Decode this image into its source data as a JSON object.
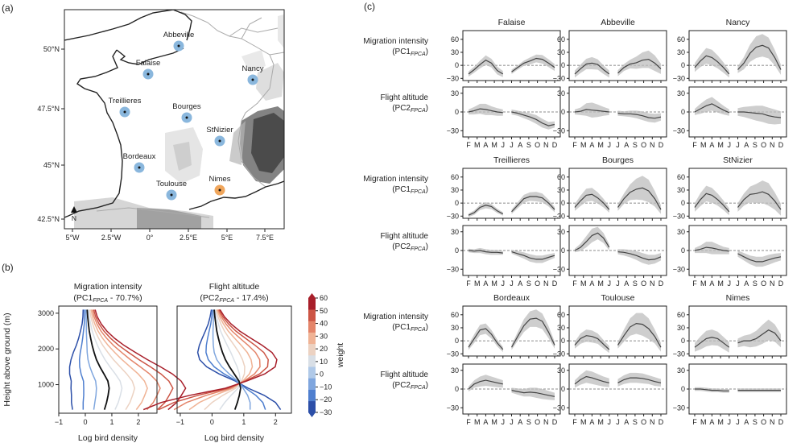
{
  "panel_labels": {
    "a": "(a)",
    "b": "(b)",
    "c": "(c)"
  },
  "map": {
    "lat_ticks": [
      "50°N",
      "47.5°N",
      "45°N",
      "42.5°N"
    ],
    "lon_ticks": [
      "5°W",
      "2.5°W",
      "0°",
      "2.5°E",
      "5°E",
      "7.5°E"
    ],
    "north_label": "N",
    "colors": {
      "site": "#8ab7dd",
      "site_highlight": "#f0a65c",
      "land_line": "#222222",
      "border": "#aaaaaa"
    },
    "sites": [
      {
        "name": "Abbeville",
        "highlight": false
      },
      {
        "name": "Falaise",
        "highlight": false
      },
      {
        "name": "Nancy",
        "highlight": false
      },
      {
        "name": "Treillieres",
        "highlight": false
      },
      {
        "name": "Bourges",
        "highlight": false
      },
      {
        "name": "StNizier",
        "highlight": false
      },
      {
        "name": "Bordeaux",
        "highlight": false
      },
      {
        "name": "Nimes",
        "highlight": true
      },
      {
        "name": "Toulouse",
        "highlight": false
      }
    ]
  },
  "chart_data": [
    {
      "type": "line",
      "panel": "b-left",
      "title": "Migration intensity",
      "subtitle_pre": "(PC1",
      "subtitle_sub": "FPCA",
      "subtitle_post": " - 70.7%)",
      "xlabel": "Log bird density",
      "ylabel": "Height above ground (m)",
      "xlim": [
        -1,
        2.7
      ],
      "ylim": [
        200,
        3200
      ],
      "xticks": [
        -1,
        0,
        1,
        2
      ],
      "yticks": [
        1000,
        2000,
        3000
      ],
      "weights": [
        -30,
        -20,
        -10,
        0,
        10,
        20,
        30,
        40,
        50,
        60
      ],
      "heights": [
        300,
        500,
        700,
        900,
        1100,
        1300,
        1500,
        1700,
        1900,
        2100,
        2300,
        2500,
        2700,
        2900,
        3100
      ],
      "mean_profile": [
        0.72,
        0.8,
        0.86,
        0.9,
        0.85,
        0.7,
        0.55,
        0.42,
        0.33,
        0.26,
        0.2,
        0.15,
        0.12,
        0.09,
        0.07
      ],
      "pc_shape": [
        0.04,
        0.044,
        0.046,
        0.048,
        0.046,
        0.043,
        0.038,
        0.032,
        0.026,
        0.02,
        0.015,
        0.011,
        0.008,
        0.006,
        0.005
      ]
    },
    {
      "type": "line",
      "panel": "b-right",
      "title": "Flight altitude",
      "subtitle_pre": "(PC2",
      "subtitle_sub": "FPCA",
      "subtitle_post": " - 17.4%)",
      "xlabel": "Log bird density",
      "xlim": [
        -1.1,
        2.5
      ],
      "ylim": [
        200,
        3200
      ],
      "xticks": [
        -1,
        0,
        1,
        2
      ],
      "weights": [
        -30,
        -20,
        -10,
        0,
        10,
        20,
        30,
        40,
        50,
        60
      ],
      "heights": [
        300,
        500,
        700,
        900,
        1100,
        1300,
        1500,
        1700,
        1900,
        2100,
        2300,
        2500,
        2700,
        2900,
        3100
      ],
      "mean_profile": [
        0.72,
        0.8,
        0.86,
        0.9,
        0.85,
        0.7,
        0.55,
        0.42,
        0.33,
        0.26,
        0.2,
        0.15,
        0.12,
        0.09,
        0.07
      ],
      "pc_shape": [
        -0.048,
        -0.04,
        -0.026,
        -0.008,
        0.004,
        0.016,
        0.024,
        0.027,
        0.026,
        0.022,
        0.017,
        0.012,
        0.008,
        0.005,
        0.003
      ]
    },
    {
      "type": "colorbar",
      "label": "weight",
      "ticks": [
        60,
        50,
        40,
        30,
        20,
        10,
        0,
        -10,
        -20,
        -30
      ],
      "range": [
        -30,
        60
      ],
      "colors": [
        "#2c4fa8",
        "#4f7fcf",
        "#7fa6de",
        "#b0c9e8",
        "#d9dfe6",
        "#ecd2c2",
        "#f0b395",
        "#e4856a",
        "#cc5545",
        "#a81f2a"
      ]
    },
    {
      "type": "area",
      "panel": "c",
      "row_labels": [
        {
          "line1": "Migration intensity",
          "pre": "(PC1",
          "sub": "FPCA",
          "post": ")"
        },
        {
          "line1": "Flight altitude",
          "pre": "(PC2",
          "sub": "FPCA",
          "post": ")"
        }
      ],
      "months": [
        "F",
        "M",
        "A",
        "M",
        "J",
        "J",
        "A",
        "S",
        "O",
        "N",
        "D"
      ],
      "intensity": {
        "ylim": [
          -35,
          80
        ],
        "yticks": [
          60,
          30,
          0,
          -30
        ]
      },
      "altitude": {
        "ylim": [
          -40,
          40
        ],
        "yticks": [
          30,
          0,
          -30
        ]
      },
      "sites": [
        {
          "name": "Falaise",
          "intensity": {
            "spring": [
              -20,
              -10,
              2,
              12,
              5,
              -12,
              -20
            ],
            "spring_band": [
              6,
              7,
              9,
              11,
              10,
              9,
              7
            ],
            "autumn": [
              -15,
              -5,
              5,
              10,
              16,
              14,
              5,
              -5
            ],
            "autumn_band": [
              5,
              5,
              6,
              8,
              9,
              10,
              9,
              8
            ]
          },
          "altitude": {
            "spring": [
              0,
              2,
              5,
              4,
              2,
              0,
              -1
            ],
            "spring_band": [
              4,
              6,
              8,
              9,
              7,
              6,
              5
            ],
            "autumn": [
              0,
              -2,
              -5,
              -8,
              -12,
              -18,
              -22,
              -20
            ],
            "autumn_band": [
              4,
              4,
              5,
              6,
              7,
              7,
              6,
              5
            ]
          }
        },
        {
          "name": "Abbeville",
          "intensity": {
            "spring": [
              -20,
              -8,
              3,
              5,
              2,
              -10,
              -20
            ],
            "spring_band": [
              8,
              10,
              12,
              14,
              12,
              10,
              8
            ],
            "autumn": [
              -18,
              -5,
              3,
              6,
              12,
              14,
              5,
              -8
            ],
            "autumn_band": [
              7,
              8,
              10,
              14,
              18,
              20,
              18,
              12
            ]
          },
          "altitude": {
            "spring": [
              0,
              1,
              4,
              3,
              2,
              1,
              0
            ],
            "spring_band": [
              4,
              6,
              10,
              12,
              10,
              7,
              5
            ],
            "autumn": [
              -2,
              -3,
              -3,
              -4,
              -6,
              -9,
              -10,
              -8
            ],
            "autumn_band": [
              4,
              4,
              5,
              6,
              7,
              7,
              7,
              6
            ]
          }
        },
        {
          "name": "Nancy",
          "intensity": {
            "spring": [
              -5,
              10,
              22,
              18,
              8,
              -5,
              -20
            ],
            "spring_band": [
              10,
              14,
              18,
              18,
              15,
              12,
              8
            ],
            "autumn": [
              -10,
              5,
              28,
              42,
              46,
              40,
              18,
              -10
            ],
            "autumn_band": [
              8,
              14,
              20,
              25,
              26,
              24,
              18,
              12
            ]
          },
          "altitude": {
            "spring": [
              0,
              5,
              10,
              13,
              8,
              3,
              -1
            ],
            "spring_band": [
              5,
              8,
              10,
              11,
              9,
              7,
              5
            ],
            "autumn": [
              0,
              0,
              -1,
              -2,
              -3,
              -6,
              -8,
              -9
            ],
            "autumn_band": [
              6,
              8,
              10,
              12,
              13,
              13,
              12,
              10
            ]
          }
        },
        {
          "name": "Treillieres",
          "intensity": {
            "spring": [
              -28,
              -22,
              -10,
              -5,
              -8,
              -18,
              -25
            ],
            "spring_band": [
              4,
              5,
              6,
              7,
              6,
              5,
              4
            ],
            "autumn": [
              -20,
              -5,
              10,
              15,
              15,
              12,
              0,
              -15
            ],
            "autumn_band": [
              5,
              7,
              9,
              10,
              11,
              10,
              8,
              6
            ]
          },
          "altitude": {
            "spring": [
              0,
              -1,
              0,
              -2,
              -3,
              -3,
              -4
            ],
            "spring_band": [
              3,
              3,
              4,
              4,
              4,
              4,
              3
            ],
            "autumn": [
              -2,
              -5,
              -8,
              -12,
              -14,
              -14,
              -11,
              -8
            ],
            "autumn_band": [
              3,
              4,
              5,
              6,
              6,
              6,
              5,
              4
            ]
          }
        },
        {
          "name": "Bourges",
          "intensity": {
            "spring": [
              -10,
              5,
              18,
              20,
              12,
              0,
              -15
            ],
            "spring_band": [
              8,
              12,
              15,
              15,
              13,
              10,
              7
            ],
            "autumn": [
              -10,
              10,
              25,
              32,
              35,
              28,
              10,
              -15
            ],
            "autumn_band": [
              8,
              12,
              18,
              24,
              28,
              26,
              18,
              10
            ]
          },
          "altitude": {
            "spring": [
              0,
              5,
              14,
              24,
              28,
              20,
              5
            ],
            "spring_band": [
              3,
              6,
              9,
              11,
              10,
              8,
              5
            ],
            "autumn": [
              -2,
              -3,
              -5,
              -8,
              -12,
              -15,
              -14,
              -10
            ],
            "autumn_band": [
              4,
              5,
              6,
              7,
              8,
              8,
              7,
              6
            ]
          }
        },
        {
          "name": "StNizier",
          "intensity": {
            "spring": [
              -10,
              8,
              22,
              18,
              8,
              -5,
              -20
            ],
            "spring_band": [
              10,
              15,
              18,
              17,
              14,
              11,
              8
            ],
            "autumn": [
              -10,
              8,
              20,
              22,
              26,
              20,
              5,
              -15
            ],
            "autumn_band": [
              10,
              14,
              18,
              22,
              26,
              26,
              20,
              14
            ]
          },
          "altitude": {
            "spring": [
              0,
              2,
              5,
              4,
              2,
              0,
              -1
            ],
            "spring_band": [
              4,
              6,
              9,
              10,
              8,
              6,
              5
            ],
            "autumn": [
              -5,
              -10,
              -15,
              -18,
              -18,
              -15,
              -12,
              -10
            ],
            "autumn_band": [
              5,
              6,
              7,
              8,
              8,
              8,
              7,
              6
            ]
          }
        },
        {
          "name": "Bordeaux",
          "intensity": {
            "spring": [
              -15,
              5,
              25,
              28,
              15,
              -5,
              -20
            ],
            "spring_band": [
              6,
              10,
              12,
              12,
              10,
              8,
              6
            ],
            "autumn": [
              -15,
              10,
              35,
              50,
              52,
              45,
              20,
              -10
            ],
            "autumn_band": [
              6,
              10,
              15,
              18,
              20,
              18,
              14,
              8
            ]
          },
          "altitude": {
            "spring": [
              0,
              8,
              12,
              14,
              12,
              10,
              8
            ],
            "spring_band": [
              4,
              6,
              8,
              9,
              8,
              7,
              6
            ],
            "autumn": [
              -2,
              -4,
              -6,
              -5,
              -6,
              -8,
              -10,
              -12
            ],
            "autumn_band": [
              4,
              5,
              6,
              7,
              8,
              8,
              7,
              6
            ]
          }
        },
        {
          "name": "Toulouse",
          "intensity": {
            "spring": [
              -10,
              5,
              12,
              10,
              5,
              -8,
              -20
            ],
            "spring_band": [
              8,
              12,
              14,
              14,
              12,
              10,
              8
            ],
            "autumn": [
              -10,
              12,
              32,
              40,
              38,
              28,
              10,
              -15
            ],
            "autumn_band": [
              8,
              14,
              20,
              24,
              26,
              24,
              16,
              10
            ]
          },
          "altitude": {
            "spring": [
              8,
              15,
              20,
              18,
              15,
              12,
              10
            ],
            "spring_band": [
              6,
              8,
              10,
              10,
              9,
              8,
              7
            ],
            "autumn": [
              10,
              15,
              18,
              18,
              17,
              15,
              12,
              10
            ],
            "autumn_band": [
              6,
              7,
              8,
              8,
              8,
              7,
              7,
              6
            ]
          }
        },
        {
          "name": "Nimes",
          "intensity": {
            "spring": [
              -15,
              -5,
              5,
              8,
              5,
              -5,
              -15
            ],
            "spring_band": [
              10,
              15,
              18,
              18,
              16,
              14,
              12
            ],
            "autumn": [
              -5,
              0,
              0,
              5,
              15,
              25,
              18,
              0
            ],
            "autumn_band": [
              10,
              12,
              15,
              18,
              22,
              24,
              20,
              15
            ]
          },
          "altitude": {
            "spring": [
              0,
              0,
              -1,
              -2,
              -2,
              -3,
              -3
            ],
            "spring_band": [
              3,
              3,
              3,
              3,
              3,
              3,
              3
            ],
            "autumn": [
              -2,
              -2,
              -2,
              -2,
              -2,
              -2,
              -2,
              -2
            ],
            "autumn_band": [
              3,
              3,
              3,
              3,
              3,
              3,
              3,
              3
            ]
          }
        }
      ]
    }
  ]
}
